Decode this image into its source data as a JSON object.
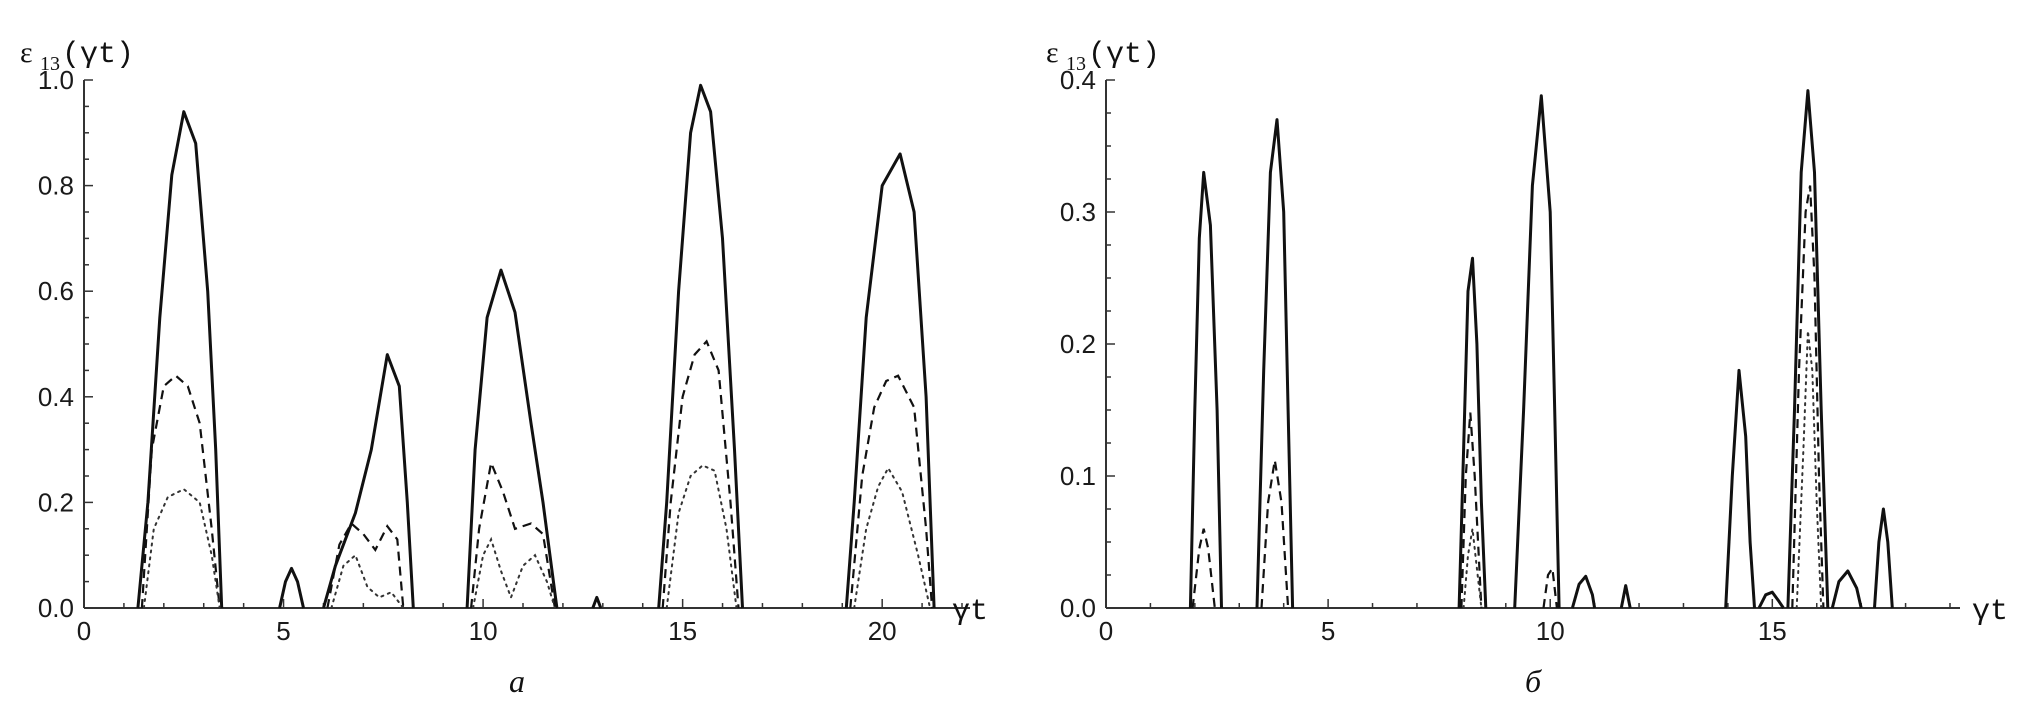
{
  "chart_data": [
    {
      "panel_label": "а",
      "type": "line",
      "ylabel_main": "ε",
      "ylabel_sub": "13",
      "ylabel_paren": "(γt)",
      "xlabel": "γt",
      "xlim": [
        0,
        22
      ],
      "ylim": [
        0,
        1.0
      ],
      "xticks": [
        0,
        5,
        10,
        15,
        20
      ],
      "xtick_labels": [
        "0",
        "5",
        "10",
        "15",
        "20"
      ],
      "yticks": [
        0,
        0.2,
        0.4,
        0.6,
        0.8,
        1.0
      ],
      "ytick_labels": [
        "0.0",
        "0.2",
        "0.4",
        "0.6",
        "0.8",
        "1.0"
      ],
      "series": [
        {
          "style": "solid",
          "segments": [
            [
              [
                1.35,
                0
              ],
              [
                1.6,
                0.2
              ],
              [
                1.9,
                0.55
              ],
              [
                2.2,
                0.82
              ],
              [
                2.5,
                0.94
              ],
              [
                2.8,
                0.88
              ],
              [
                3.1,
                0.6
              ],
              [
                3.3,
                0.3
              ],
              [
                3.45,
                0
              ]
            ],
            [
              [
                4.9,
                0
              ],
              [
                5.05,
                0.05
              ],
              [
                5.2,
                0.075
              ],
              [
                5.35,
                0.05
              ],
              [
                5.5,
                0
              ]
            ],
            [
              [
                6.0,
                0
              ],
              [
                6.3,
                0.08
              ],
              [
                6.8,
                0.18
              ],
              [
                7.2,
                0.3
              ],
              [
                7.6,
                0.48
              ],
              [
                7.9,
                0.42
              ],
              [
                8.1,
                0.2
              ],
              [
                8.25,
                0
              ]
            ],
            [
              [
                9.6,
                0
              ],
              [
                9.8,
                0.3
              ],
              [
                10.1,
                0.55
              ],
              [
                10.45,
                0.64
              ],
              [
                10.8,
                0.56
              ],
              [
                11.2,
                0.35
              ],
              [
                11.5,
                0.2
              ],
              [
                11.85,
                0
              ]
            ],
            [
              [
                12.75,
                0
              ],
              [
                12.85,
                0.02
              ],
              [
                12.95,
                0
              ]
            ],
            [
              [
                14.4,
                0
              ],
              [
                14.6,
                0.2
              ],
              [
                14.9,
                0.6
              ],
              [
                15.2,
                0.9
              ],
              [
                15.45,
                0.99
              ],
              [
                15.7,
                0.94
              ],
              [
                16.0,
                0.7
              ],
              [
                16.3,
                0.3
              ],
              [
                16.5,
                0
              ]
            ],
            [
              [
                19.1,
                0
              ],
              [
                19.3,
                0.2
              ],
              [
                19.6,
                0.55
              ],
              [
                20.0,
                0.8
              ],
              [
                20.45,
                0.86
              ],
              [
                20.8,
                0.75
              ],
              [
                21.1,
                0.4
              ],
              [
                21.3,
                0
              ]
            ]
          ]
        },
        {
          "style": "dashed",
          "segments": [
            [
              [
                1.45,
                0
              ],
              [
                1.7,
                0.3
              ],
              [
                2.0,
                0.42
              ],
              [
                2.3,
                0.44
              ],
              [
                2.6,
                0.42
              ],
              [
                2.9,
                0.35
              ],
              [
                3.2,
                0.15
              ],
              [
                3.4,
                0
              ]
            ],
            [
              [
                6.1,
                0
              ],
              [
                6.4,
                0.12
              ],
              [
                6.7,
                0.16
              ],
              [
                7.0,
                0.14
              ],
              [
                7.3,
                0.11
              ],
              [
                7.6,
                0.155
              ],
              [
                7.85,
                0.13
              ],
              [
                8.0,
                0
              ]
            ],
            [
              [
                9.7,
                0
              ],
              [
                9.9,
                0.15
              ],
              [
                10.2,
                0.275
              ],
              [
                10.5,
                0.22
              ],
              [
                10.8,
                0.15
              ],
              [
                11.2,
                0.16
              ],
              [
                11.5,
                0.14
              ],
              [
                11.8,
                0
              ]
            ],
            [
              [
                14.5,
                0
              ],
              [
                14.7,
                0.2
              ],
              [
                15.0,
                0.4
              ],
              [
                15.3,
                0.48
              ],
              [
                15.6,
                0.505
              ],
              [
                15.9,
                0.45
              ],
              [
                16.2,
                0.2
              ],
              [
                16.4,
                0
              ]
            ],
            [
              [
                19.2,
                0
              ],
              [
                19.5,
                0.25
              ],
              [
                19.8,
                0.38
              ],
              [
                20.1,
                0.43
              ],
              [
                20.4,
                0.44
              ],
              [
                20.8,
                0.38
              ],
              [
                21.1,
                0.15
              ],
              [
                21.25,
                0
              ]
            ]
          ]
        },
        {
          "style": "dotted",
          "segments": [
            [
              [
                1.5,
                0
              ],
              [
                1.75,
                0.15
              ],
              [
                2.1,
                0.21
              ],
              [
                2.5,
                0.225
              ],
              [
                2.9,
                0.2
              ],
              [
                3.2,
                0.1
              ],
              [
                3.4,
                0
              ]
            ],
            [
              [
                6.2,
                0
              ],
              [
                6.5,
                0.08
              ],
              [
                6.8,
                0.1
              ],
              [
                7.1,
                0.04
              ],
              [
                7.4,
                0.02
              ],
              [
                7.7,
                0.03
              ],
              [
                8.0,
                0
              ]
            ],
            [
              [
                9.75,
                0
              ],
              [
                10.0,
                0.1
              ],
              [
                10.2,
                0.13
              ],
              [
                10.45,
                0.07
              ],
              [
                10.7,
                0.02
              ],
              [
                11.0,
                0.08
              ],
              [
                11.3,
                0.1
              ],
              [
                11.6,
                0.05
              ],
              [
                11.8,
                0
              ]
            ],
            [
              [
                14.6,
                0
              ],
              [
                14.9,
                0.18
              ],
              [
                15.2,
                0.25
              ],
              [
                15.5,
                0.27
              ],
              [
                15.8,
                0.26
              ],
              [
                16.1,
                0.15
              ],
              [
                16.35,
                0
              ]
            ],
            [
              [
                19.3,
                0
              ],
              [
                19.6,
                0.15
              ],
              [
                19.9,
                0.23
              ],
              [
                20.15,
                0.265
              ],
              [
                20.5,
                0.22
              ],
              [
                20.9,
                0.1
              ],
              [
                21.2,
                0
              ]
            ]
          ]
        }
      ]
    },
    {
      "panel_label": "б",
      "type": "line",
      "ylabel_main": "ε",
      "ylabel_sub": "13",
      "ylabel_paren": "(γt)",
      "xlabel": "γt",
      "xlim": [
        0,
        19
      ],
      "ylim": [
        0,
        0.4
      ],
      "xticks": [
        0,
        5,
        10,
        15
      ],
      "xtick_labels": [
        "0",
        "5",
        "10",
        "15"
      ],
      "yticks": [
        0,
        0.1,
        0.2,
        0.3,
        0.4
      ],
      "ytick_labels": [
        "0.0",
        "0.1",
        "0.2",
        "0.3",
        "0.4"
      ],
      "series": [
        {
          "style": "solid",
          "segments": [
            [
              [
                1.9,
                0
              ],
              [
                2.0,
                0.15
              ],
              [
                2.1,
                0.28
              ],
              [
                2.2,
                0.33
              ],
              [
                2.35,
                0.29
              ],
              [
                2.5,
                0.15
              ],
              [
                2.6,
                0
              ]
            ],
            [
              [
                3.4,
                0
              ],
              [
                3.55,
                0.18
              ],
              [
                3.7,
                0.33
              ],
              [
                3.85,
                0.37
              ],
              [
                4.0,
                0.3
              ],
              [
                4.1,
                0.15
              ],
              [
                4.2,
                0
              ]
            ],
            [
              [
                7.95,
                0
              ],
              [
                8.05,
                0.12
              ],
              [
                8.15,
                0.24
              ],
              [
                8.25,
                0.265
              ],
              [
                8.35,
                0.2
              ],
              [
                8.45,
                0.08
              ],
              [
                8.55,
                0
              ]
            ],
            [
              [
                9.2,
                0
              ],
              [
                9.4,
                0.15
              ],
              [
                9.6,
                0.32
              ],
              [
                9.8,
                0.388
              ],
              [
                10.0,
                0.3
              ],
              [
                10.1,
                0.15
              ],
              [
                10.2,
                0
              ]
            ],
            [
              [
                10.5,
                0
              ],
              [
                10.65,
                0.018
              ],
              [
                10.8,
                0.024
              ],
              [
                10.95,
                0.01
              ],
              [
                11.0,
                0
              ]
            ],
            [
              [
                11.6,
                0
              ],
              [
                11.7,
                0.017
              ],
              [
                11.8,
                0
              ]
            ],
            [
              [
                13.95,
                0
              ],
              [
                14.1,
                0.1
              ],
              [
                14.25,
                0.18
              ],
              [
                14.4,
                0.13
              ],
              [
                14.5,
                0.05
              ],
              [
                14.6,
                0
              ]
            ],
            [
              [
                14.7,
                0
              ],
              [
                14.85,
                0.01
              ],
              [
                15.0,
                0.012
              ],
              [
                15.15,
                0.005
              ],
              [
                15.25,
                0
              ]
            ],
            [
              [
                15.35,
                0
              ],
              [
                15.5,
                0.15
              ],
              [
                15.65,
                0.33
              ],
              [
                15.8,
                0.392
              ],
              [
                15.95,
                0.33
              ],
              [
                16.1,
                0.15
              ],
              [
                16.25,
                0
              ]
            ],
            [
              [
                16.35,
                0
              ],
              [
                16.5,
                0.02
              ],
              [
                16.7,
                0.028
              ],
              [
                16.9,
                0.015
              ],
              [
                17.0,
                0
              ]
            ],
            [
              [
                17.3,
                0
              ],
              [
                17.4,
                0.05
              ],
              [
                17.5,
                0.075
              ],
              [
                17.6,
                0.05
              ],
              [
                17.7,
                0
              ]
            ]
          ]
        },
        {
          "style": "dashed",
          "segments": [
            [
              [
                1.95,
                0
              ],
              [
                2.1,
                0.045
              ],
              [
                2.2,
                0.06
              ],
              [
                2.3,
                0.045
              ],
              [
                2.45,
                0
              ]
            ],
            [
              [
                3.5,
                0
              ],
              [
                3.65,
                0.08
              ],
              [
                3.8,
                0.112
              ],
              [
                3.95,
                0.08
              ],
              [
                4.1,
                0
              ]
            ],
            [
              [
                8.0,
                0
              ],
              [
                8.1,
                0.1
              ],
              [
                8.2,
                0.148
              ],
              [
                8.3,
                0.1
              ],
              [
                8.45,
                0
              ]
            ],
            [
              [
                9.85,
                0
              ],
              [
                9.95,
                0.025
              ],
              [
                10.05,
                0.03
              ],
              [
                10.15,
                0
              ]
            ],
            [
              [
                15.45,
                0
              ],
              [
                15.6,
                0.18
              ],
              [
                15.75,
                0.3
              ],
              [
                15.85,
                0.32
              ],
              [
                15.95,
                0.25
              ],
              [
                16.05,
                0.1
              ],
              [
                16.15,
                0
              ]
            ]
          ]
        },
        {
          "style": "dotted",
          "segments": [
            [
              [
                8.05,
                0
              ],
              [
                8.15,
                0.04
              ],
              [
                8.25,
                0.06
              ],
              [
                8.35,
                0.03
              ],
              [
                8.45,
                0
              ]
            ],
            [
              [
                15.55,
                0
              ],
              [
                15.7,
                0.12
              ],
              [
                15.8,
                0.21
              ],
              [
                15.9,
                0.18
              ],
              [
                16.0,
                0.08
              ],
              [
                16.1,
                0
              ]
            ]
          ]
        }
      ]
    }
  ]
}
